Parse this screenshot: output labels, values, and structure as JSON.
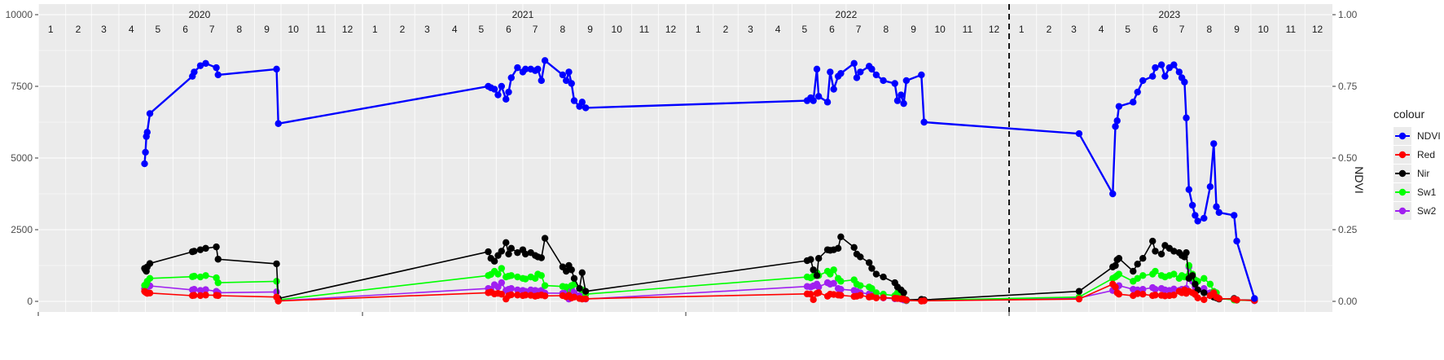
{
  "chart_data": {
    "type": "line",
    "title": "",
    "xlabel": "",
    "ylabel_left": "",
    "ylabel_right": "NDVI",
    "ylim_left": [
      0,
      10000
    ],
    "ylim_right": [
      0,
      1
    ],
    "y_ticks_left": [
      "0",
      "2500",
      "5000",
      "7500",
      "10000"
    ],
    "y_ticks_right": [
      "0.00",
      "0.25",
      "0.50",
      "0.75",
      "1.00"
    ],
    "years": [
      "2020",
      "2021",
      "2022",
      "2023"
    ],
    "months": [
      "1",
      "2",
      "3",
      "4",
      "5",
      "6",
      "7",
      "8",
      "9",
      "10",
      "11",
      "12"
    ],
    "vertical_line_x": "2023-01-01",
    "grid": true,
    "legend": {
      "title": "colour",
      "position": "right",
      "entries": [
        "NDVI",
        "Red",
        "Nir",
        "Sw1",
        "Sw2"
      ]
    },
    "colors": {
      "NDVI": "#0000ff",
      "Red": "#ff0000",
      "Nir": "#000000",
      "Sw1": "#00ff00",
      "Sw2": "#a020f0"
    },
    "dates": [
      "2020-04-30",
      "2020-05-01",
      "2020-05-02",
      "2020-05-03",
      "2020-05-06",
      "2020-06-23",
      "2020-06-25",
      "2020-07-02",
      "2020-07-08",
      "2020-07-20",
      "2020-07-22",
      "2020-09-26",
      "2020-09-28",
      "2021-05-23",
      "2021-05-26",
      "2021-05-30",
      "2021-06-03",
      "2021-06-07",
      "2021-06-12",
      "2021-06-15",
      "2021-06-18",
      "2021-06-25",
      "2021-07-01",
      "2021-07-04",
      "2021-07-10",
      "2021-07-15",
      "2021-07-18",
      "2021-07-22",
      "2021-07-26",
      "2021-08-15",
      "2021-08-19",
      "2021-08-22",
      "2021-08-25",
      "2021-08-28",
      "2021-09-03",
      "2021-09-06",
      "2021-09-10",
      "2022-05-18",
      "2022-05-22",
      "2022-05-25",
      "2022-05-29",
      "2022-05-31",
      "2022-06-10",
      "2022-06-13",
      "2022-06-17",
      "2022-06-22",
      "2022-06-25",
      "2022-07-10",
      "2022-07-13",
      "2022-07-17",
      "2022-07-27",
      "2022-07-30",
      "2022-08-04",
      "2022-08-12",
      "2022-08-25",
      "2022-08-28",
      "2022-09-01",
      "2022-09-04",
      "2022-09-07",
      "2022-09-24",
      "2022-09-27",
      "2023-03-21",
      "2023-04-28",
      "2023-05-01",
      "2023-05-03",
      "2023-05-05",
      "2023-05-21",
      "2023-05-26",
      "2023-06-01",
      "2023-06-12",
      "2023-06-15",
      "2023-06-22",
      "2023-06-26",
      "2023-07-01",
      "2023-07-06",
      "2023-07-12",
      "2023-07-15",
      "2023-07-18",
      "2023-07-20",
      "2023-07-23",
      "2023-07-27",
      "2023-07-30",
      "2023-08-02",
      "2023-08-09",
      "2023-08-16",
      "2023-08-20",
      "2023-08-23",
      "2023-08-26",
      "2023-09-12",
      "2023-09-15",
      "2023-10-05"
    ],
    "series": [
      {
        "name": "NDVI",
        "axis": "right",
        "values": [
          0.48,
          0.52,
          0.575,
          0.59,
          0.655,
          0.785,
          0.8,
          0.822,
          0.83,
          0.815,
          0.79,
          0.81,
          0.62,
          0.75,
          0.745,
          0.74,
          0.72,
          0.75,
          0.705,
          0.73,
          0.78,
          0.815,
          0.8,
          0.81,
          0.81,
          0.805,
          0.81,
          0.77,
          0.84,
          0.79,
          0.77,
          0.8,
          0.76,
          0.7,
          0.68,
          0.695,
          0.675,
          0.7,
          0.71,
          0.7,
          0.81,
          0.715,
          0.695,
          0.8,
          0.74,
          0.785,
          0.795,
          0.83,
          0.78,
          0.8,
          0.82,
          0.81,
          0.79,
          0.77,
          0.76,
          0.7,
          0.72,
          0.69,
          0.77,
          0.79,
          0.625,
          0.585,
          0.375,
          0.61,
          0.63,
          0.68,
          0.695,
          0.73,
          0.77,
          0.785,
          0.815,
          0.825,
          0.785,
          0.815,
          0.825,
          0.8,
          0.78,
          0.765,
          0.64,
          0.39,
          0.335,
          0.3,
          0.28,
          0.29,
          0.4,
          0.55,
          0.33,
          0.31,
          0.3,
          0.21,
          0.01
        ]
      },
      {
        "name": "Red",
        "axis": "left",
        "values": [
          350,
          320,
          300,
          280,
          290,
          200,
          210,
          200,
          220,
          210,
          200,
          150,
          10,
          300,
          320,
          260,
          280,
          250,
          80,
          200,
          230,
          220,
          200,
          220,
          210,
          180,
          200,
          220,
          190,
          200,
          160,
          210,
          120,
          150,
          100,
          80,
          90,
          260,
          250,
          60,
          280,
          300,
          180,
          250,
          240,
          220,
          210,
          170,
          180,
          210,
          150,
          170,
          120,
          130,
          110,
          100,
          90,
          80,
          40,
          10,
          20,
          80,
          600,
          500,
          300,
          250,
          200,
          270,
          250,
          200,
          220,
          210,
          190,
          200,
          220,
          350,
          300,
          400,
          280,
          350,
          300,
          240,
          120,
          60,
          200,
          300,
          150,
          100,
          80,
          50,
          30
        ]
      },
      {
        "name": "Nir",
        "axis": "left",
        "values": [
          1150,
          1100,
          1050,
          1200,
          1320,
          1730,
          1750,
          1800,
          1850,
          1900,
          1470,
          1310,
          100,
          1730,
          1500,
          1400,
          1600,
          1750,
          2050,
          1650,
          1850,
          1700,
          1800,
          1650,
          1700,
          1600,
          1550,
          1520,
          2200,
          1200,
          1050,
          1250,
          1100,
          800,
          450,
          1000,
          350,
          1420,
          1460,
          1100,
          900,
          1500,
          1800,
          1780,
          1800,
          1850,
          2250,
          1880,
          1650,
          1550,
          1350,
          1150,
          950,
          850,
          650,
          500,
          400,
          300,
          50,
          70,
          50,
          350,
          1200,
          1250,
          1450,
          1500,
          1050,
          1300,
          1500,
          2100,
          1750,
          1650,
          1950,
          1850,
          1750,
          1700,
          1600,
          1550,
          1700,
          800,
          900,
          600,
          400,
          300,
          200,
          150,
          120,
          80,
          100,
          50,
          40
        ]
      },
      {
        "name": "Sw1",
        "axis": "left",
        "values": [
          560,
          550,
          600,
          700,
          800,
          860,
          880,
          850,
          900,
          820,
          650,
          700,
          50,
          900,
          940,
          1050,
          950,
          1150,
          850,
          880,
          900,
          850,
          800,
          780,
          850,
          800,
          950,
          900,
          550,
          520,
          500,
          200,
          550,
          600,
          450,
          400,
          250,
          850,
          820,
          880,
          1000,
          900,
          1050,
          950,
          1100,
          800,
          700,
          750,
          600,
          550,
          500,
          450,
          300,
          250,
          200,
          300,
          180,
          100,
          30,
          40,
          40,
          150,
          800,
          850,
          900,
          950,
          700,
          800,
          900,
          950,
          1050,
          900,
          850,
          900,
          950,
          800,
          900,
          850,
          850,
          1250,
          950,
          750,
          700,
          800,
          600,
          350,
          300,
          100,
          50,
          40,
          30
        ]
      },
      {
        "name": "Sw2",
        "axis": "left",
        "values": [
          440,
          420,
          460,
          520,
          540,
          400,
          420,
          380,
          410,
          350,
          300,
          330,
          20,
          450,
          420,
          580,
          500,
          650,
          380,
          420,
          450,
          400,
          380,
          350,
          400,
          380,
          350,
          380,
          290,
          280,
          320,
          80,
          450,
          300,
          200,
          150,
          80,
          520,
          500,
          540,
          600,
          500,
          650,
          600,
          630,
          450,
          420,
          380,
          350,
          300,
          260,
          220,
          150,
          120,
          90,
          100,
          80,
          50,
          20,
          30,
          20,
          120,
          380,
          450,
          500,
          550,
          420,
          400,
          420,
          480,
          420,
          450,
          400,
          380,
          430,
          380,
          420,
          400,
          450,
          1200,
          700,
          500,
          400,
          450,
          300,
          250,
          200,
          100,
          60,
          50,
          20
        ]
      }
    ]
  }
}
